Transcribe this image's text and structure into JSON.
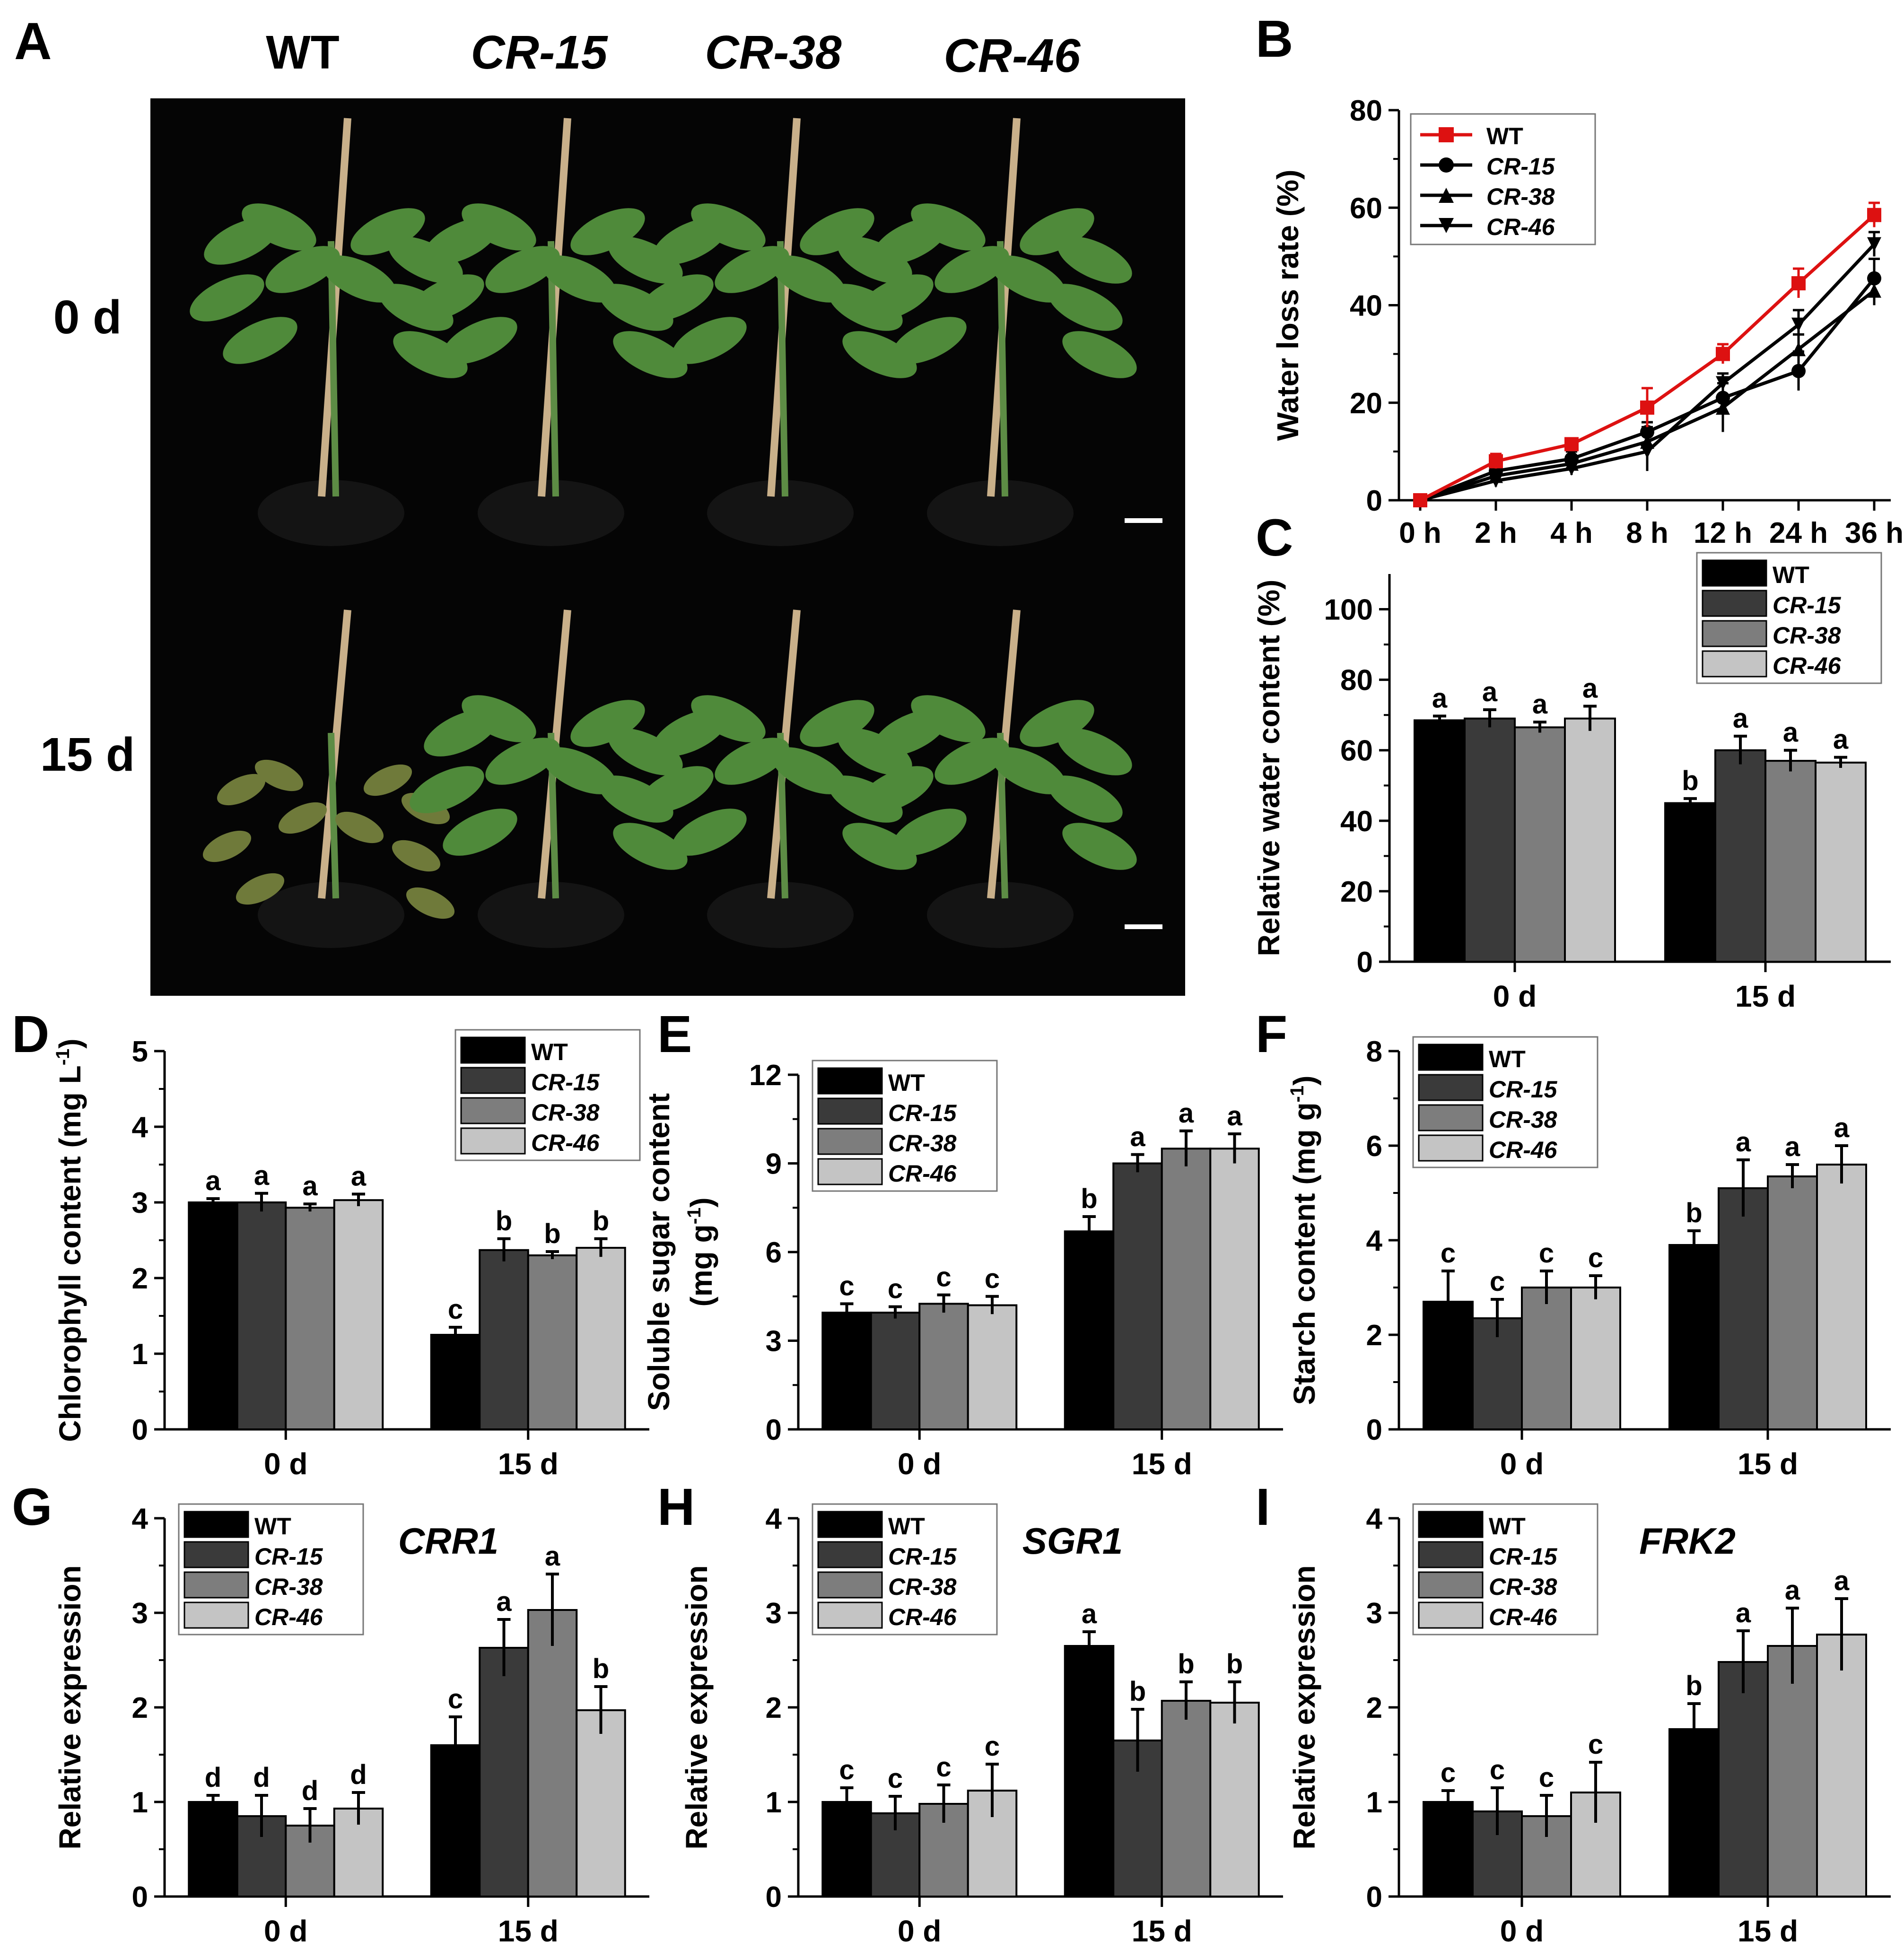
{
  "figure": {
    "colors": {
      "wt": "#000000",
      "cr15": "#3a3a3a",
      "cr38": "#7d7d7d",
      "cr46": "#c4c4c4",
      "red": "#dd1111",
      "photo_bg": "#050505",
      "leaf": "#4f8a3a",
      "stake": "#c9b08a"
    }
  },
  "panel_a": {
    "letter": "A",
    "genotypes": [
      "WT",
      "CR-15",
      "CR-38",
      "CR-46"
    ],
    "row_labels": [
      "0 d",
      "15 d"
    ],
    "photo_description_icon": "plant-photo-icon"
  },
  "chart_data": [
    {
      "id": "B",
      "type": "line",
      "letter": "B",
      "title": "",
      "xlabel": "",
      "ylabel": "Water loss rate (%)",
      "x": [
        "0 h",
        "2 h",
        "4 h",
        "8 h",
        "12 h",
        "24 h",
        "36 h"
      ],
      "ylim": [
        0,
        80
      ],
      "yticks": [
        0,
        20,
        40,
        60,
        80
      ],
      "legend": "top-left",
      "series": [
        {
          "name": "WT",
          "values": [
            0,
            8,
            11.5,
            19,
            30,
            44.5,
            58.5
          ],
          "errors": [
            0.5,
            1.5,
            1.2,
            4,
            2,
            3,
            2.5
          ],
          "marker": "square",
          "color": "#dd1111"
        },
        {
          "name": "CR-15",
          "values": [
            0,
            6,
            8.5,
            14,
            21,
            26.5,
            45.5
          ],
          "errors": [
            0.5,
            1.5,
            1.5,
            2,
            3,
            4,
            4
          ],
          "marker": "circle",
          "color": "#000000"
        },
        {
          "name": "CR-38",
          "values": [
            0,
            5,
            7.5,
            12,
            19,
            31,
            43
          ],
          "errors": [
            0.5,
            1.2,
            1.5,
            3,
            5,
            3,
            3
          ],
          "marker": "triangle-up",
          "color": "#000000"
        },
        {
          "name": "CR-46",
          "values": [
            0,
            4,
            6.5,
            10,
            24,
            36,
            52.5
          ],
          "errors": [
            0.5,
            1.2,
            1.3,
            4,
            2,
            3,
            2.5
          ],
          "marker": "triangle-down",
          "color": "#000000"
        }
      ]
    },
    {
      "id": "C",
      "type": "bar",
      "letter": "C",
      "title": "",
      "xlabel": "",
      "ylabel": "Relative water content (%)",
      "categories": [
        "0 d",
        "15 d"
      ],
      "ylim": [
        0,
        110
      ],
      "yticks": [
        0,
        20,
        40,
        60,
        80,
        100
      ],
      "legend": "top-right",
      "series": [
        {
          "name": "WT",
          "values": [
            68.5,
            45
          ],
          "errors": [
            1.2,
            1.3
          ],
          "letters": [
            "a",
            "b"
          ]
        },
        {
          "name": "CR-15",
          "values": [
            69,
            60
          ],
          "errors": [
            2.5,
            4
          ],
          "letters": [
            "a",
            "a"
          ]
        },
        {
          "name": "CR-38",
          "values": [
            66.5,
            57
          ],
          "errors": [
            1.5,
            3
          ],
          "letters": [
            "a",
            "a"
          ]
        },
        {
          "name": "CR-46",
          "values": [
            69,
            56.5
          ],
          "errors": [
            3.5,
            1.5
          ],
          "letters": [
            "a",
            "a"
          ]
        }
      ]
    },
    {
      "id": "D",
      "type": "bar",
      "letter": "D",
      "title": "",
      "xlabel": "",
      "ylabel": "Chlorophyll content (mg L-1)",
      "ylabel_main": "Chlorophyll content (mg L",
      "ylabel_sup": "-1",
      "ylabel_close": ")",
      "categories": [
        "0 d",
        "15 d"
      ],
      "ylim": [
        0,
        5
      ],
      "yticks": [
        0,
        1,
        2,
        3,
        4,
        5
      ],
      "legend": "top-right",
      "series": [
        {
          "name": "WT",
          "values": [
            3.0,
            1.25
          ],
          "errors": [
            0.05,
            0.1
          ],
          "letters": [
            "a",
            "c"
          ]
        },
        {
          "name": "CR-15",
          "values": [
            3.0,
            2.37
          ],
          "errors": [
            0.12,
            0.15
          ],
          "letters": [
            "a",
            "b"
          ]
        },
        {
          "name": "CR-38",
          "values": [
            2.93,
            2.3
          ],
          "errors": [
            0.05,
            0.05
          ],
          "letters": [
            "a",
            "b"
          ]
        },
        {
          "name": "CR-46",
          "values": [
            3.03,
            2.4
          ],
          "errors": [
            0.08,
            0.12
          ],
          "letters": [
            "a",
            "b"
          ]
        }
      ]
    },
    {
      "id": "E",
      "type": "bar",
      "letter": "E",
      "title": "",
      "xlabel": "",
      "ylabel": "Soluble sugar content (mg g-1)",
      "ylabel_main": "Soluble sugar content",
      "ylabel_line2": "(mg g",
      "ylabel_sup": "-1",
      "ylabel_close": ")",
      "categories": [
        "0 d",
        "15 d"
      ],
      "ylim": [
        0,
        12
      ],
      "yticks": [
        0,
        3,
        6,
        9,
        12
      ],
      "legend": "top-left",
      "series": [
        {
          "name": "WT",
          "values": [
            3.95,
            6.7
          ],
          "errors": [
            0.3,
            0.5
          ],
          "letters": [
            "c",
            "b"
          ]
        },
        {
          "name": "CR-15",
          "values": [
            3.95,
            9.0
          ],
          "errors": [
            0.2,
            0.3
          ],
          "letters": [
            "c",
            "a"
          ]
        },
        {
          "name": "CR-38",
          "values": [
            4.25,
            9.5
          ],
          "errors": [
            0.3,
            0.6
          ],
          "letters": [
            "c",
            "a"
          ]
        },
        {
          "name": "CR-46",
          "values": [
            4.2,
            9.5
          ],
          "errors": [
            0.3,
            0.5
          ],
          "letters": [
            "c",
            "a"
          ]
        }
      ]
    },
    {
      "id": "F",
      "type": "bar",
      "letter": "F",
      "title": "",
      "xlabel": "",
      "ylabel": "Starch content (mg g-1)",
      "ylabel_main": "Starch content (mg g",
      "ylabel_sup": "-1",
      "ylabel_close": ")",
      "categories": [
        "0 d",
        "15 d"
      ],
      "ylim": [
        0,
        8
      ],
      "yticks": [
        0,
        2,
        4,
        6,
        8
      ],
      "legend": "top-left",
      "series": [
        {
          "name": "WT",
          "values": [
            2.7,
            3.9
          ],
          "errors": [
            0.65,
            0.3
          ],
          "letters": [
            "c",
            "b"
          ]
        },
        {
          "name": "CR-15",
          "values": [
            2.35,
            5.1
          ],
          "errors": [
            0.4,
            0.6
          ],
          "letters": [
            "c",
            "a"
          ]
        },
        {
          "name": "CR-38",
          "values": [
            3.0,
            5.35
          ],
          "errors": [
            0.35,
            0.25
          ],
          "letters": [
            "c",
            "a"
          ]
        },
        {
          "name": "CR-46",
          "values": [
            3.0,
            5.6
          ],
          "errors": [
            0.25,
            0.4
          ],
          "letters": [
            "c",
            "a"
          ]
        }
      ]
    },
    {
      "id": "G",
      "type": "bar",
      "letter": "G",
      "title": "CRR1",
      "xlabel": "",
      "ylabel": "Relative expression",
      "categories": [
        "0 d",
        "15 d"
      ],
      "ylim": [
        0,
        4
      ],
      "yticks": [
        0,
        1,
        2,
        3,
        4
      ],
      "legend": "top-left",
      "series": [
        {
          "name": "WT",
          "values": [
            1.0,
            1.6
          ],
          "errors": [
            0.07,
            0.3
          ],
          "letters": [
            "d",
            "c"
          ]
        },
        {
          "name": "CR-15",
          "values": [
            0.85,
            2.63
          ],
          "errors": [
            0.22,
            0.3
          ],
          "letters": [
            "d",
            "a"
          ]
        },
        {
          "name": "CR-38",
          "values": [
            0.75,
            3.03
          ],
          "errors": [
            0.18,
            0.38
          ],
          "letters": [
            "d",
            "a"
          ]
        },
        {
          "name": "CR-46",
          "values": [
            0.93,
            1.97
          ],
          "errors": [
            0.17,
            0.25
          ],
          "letters": [
            "d",
            "b"
          ]
        }
      ]
    },
    {
      "id": "H",
      "type": "bar",
      "letter": "H",
      "title": "SGR1",
      "xlabel": "",
      "ylabel": "Relative expression",
      "categories": [
        "0 d",
        "15 d"
      ],
      "ylim": [
        0,
        4
      ],
      "yticks": [
        0,
        1,
        2,
        3,
        4
      ],
      "legend": "top-left",
      "series": [
        {
          "name": "WT",
          "values": [
            1.0,
            2.65
          ],
          "errors": [
            0.15,
            0.15
          ],
          "letters": [
            "c",
            "a"
          ]
        },
        {
          "name": "CR-15",
          "values": [
            0.88,
            1.65
          ],
          "errors": [
            0.18,
            0.33
          ],
          "letters": [
            "c",
            "b"
          ]
        },
        {
          "name": "CR-38",
          "values": [
            0.98,
            2.07
          ],
          "errors": [
            0.2,
            0.2
          ],
          "letters": [
            "c",
            "b"
          ]
        },
        {
          "name": "CR-46",
          "values": [
            1.12,
            2.05
          ],
          "errors": [
            0.28,
            0.22
          ],
          "letters": [
            "c",
            "b"
          ]
        }
      ]
    },
    {
      "id": "I",
      "type": "bar",
      "letter": "I",
      "title": "FRK2",
      "xlabel": "",
      "ylabel": "Relative expression",
      "categories": [
        "0 d",
        "15 d"
      ],
      "ylim": [
        0,
        4
      ],
      "yticks": [
        0,
        1,
        2,
        3,
        4
      ],
      "legend": "top-left",
      "series": [
        {
          "name": "WT",
          "values": [
            1.0,
            1.77
          ],
          "errors": [
            0.12,
            0.27
          ],
          "letters": [
            "c",
            "b"
          ]
        },
        {
          "name": "CR-15",
          "values": [
            0.9,
            2.48
          ],
          "errors": [
            0.25,
            0.33
          ],
          "letters": [
            "c",
            "a"
          ]
        },
        {
          "name": "CR-38",
          "values": [
            0.85,
            2.65
          ],
          "errors": [
            0.22,
            0.4
          ],
          "letters": [
            "c",
            "a"
          ]
        },
        {
          "name": "CR-46",
          "values": [
            1.1,
            2.77
          ],
          "errors": [
            0.32,
            0.38
          ],
          "letters": [
            "c",
            "a"
          ]
        }
      ]
    }
  ]
}
